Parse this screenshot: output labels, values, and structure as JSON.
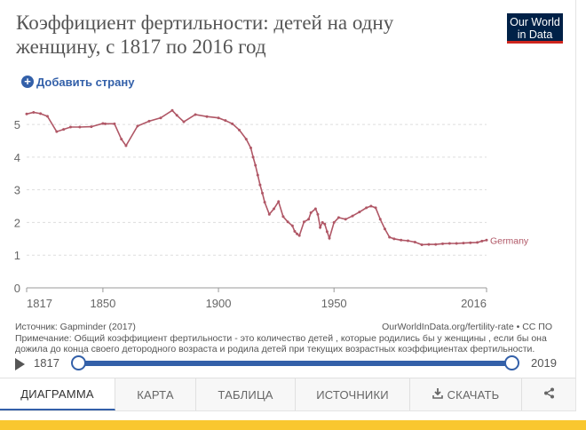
{
  "header": {
    "title": "Коэффициент фертильности: детей на одну женщину, с 1817 по 2016 год",
    "logo_line1": "Our World",
    "logo_line2": "in Data"
  },
  "controls": {
    "add_country": "Добавить страну"
  },
  "chart_data": {
    "type": "line",
    "xlim": [
      1817,
      2016
    ],
    "ylim": [
      0,
      5.6
    ],
    "x_ticks": [
      "1817",
      "1850",
      "1900",
      "1950",
      "2016"
    ],
    "y_ticks": [
      "0",
      "1",
      "2",
      "3",
      "4",
      "5"
    ],
    "grid": true,
    "series": [
      {
        "name": "Germany",
        "color": "#b05766",
        "x": [
          1817,
          1820,
          1823,
          1826,
          1830,
          1833,
          1836,
          1840,
          1845,
          1850,
          1851,
          1855,
          1858,
          1860,
          1865,
          1870,
          1875,
          1880,
          1882,
          1885,
          1890,
          1895,
          1900,
          1903,
          1906,
          1909,
          1912,
          1914,
          1915,
          1916,
          1917,
          1918,
          1919,
          1920,
          1922,
          1924,
          1926,
          1928,
          1930,
          1932,
          1933,
          1934,
          1935,
          1937,
          1939,
          1940,
          1942,
          1943,
          1944,
          1945,
          1946,
          1947,
          1948,
          1950,
          1952,
          1955,
          1958,
          1961,
          1964,
          1966,
          1968,
          1970,
          1972,
          1974,
          1976,
          1979,
          1982,
          1985,
          1988,
          1991,
          1994,
          1997,
          2000,
          2003,
          2006,
          2009,
          2012,
          2014,
          2016
        ],
        "y": [
          5.32,
          5.37,
          5.33,
          5.25,
          4.78,
          4.85,
          4.92,
          4.92,
          4.93,
          5.03,
          5.02,
          5.02,
          4.55,
          4.35,
          4.95,
          5.1,
          5.2,
          5.43,
          5.28,
          5.08,
          5.3,
          5.24,
          5.2,
          5.12,
          5.02,
          4.83,
          4.55,
          4.28,
          4.0,
          3.75,
          3.45,
          3.15,
          2.9,
          2.62,
          2.25,
          2.42,
          2.64,
          2.18,
          2.02,
          1.9,
          1.73,
          1.65,
          1.6,
          2.02,
          2.1,
          2.3,
          2.42,
          2.25,
          1.85,
          2.0,
          1.95,
          1.72,
          1.52,
          2.0,
          2.15,
          2.1,
          2.2,
          2.32,
          2.45,
          2.5,
          2.45,
          2.1,
          1.8,
          1.55,
          1.5,
          1.46,
          1.44,
          1.4,
          1.32,
          1.33,
          1.33,
          1.35,
          1.36,
          1.36,
          1.37,
          1.38,
          1.39,
          1.43,
          1.46
        ]
      }
    ]
  },
  "footer": {
    "source": "Источник: Gapminder (2017)",
    "url": "OurWorldInData.org/fertility-rate • CC ПО",
    "note": "Примечание: Общий коэффициент фертильности - это количество детей , которые родились бы у женщины , если бы она дожила до конца своего детородного возраста и родила детей при текущих возрастных коэффициентах фертильности."
  },
  "timeline": {
    "start": "1817",
    "end": "2019",
    "range_start_fraction": 0.0,
    "range_end_fraction": 1.0
  },
  "tabs": [
    {
      "label": "ДИАГРАММА",
      "active": true
    },
    {
      "label": "КАРТА"
    },
    {
      "label": "ТАБЛИЦА"
    },
    {
      "label": "ИСТОЧНИКИ"
    },
    {
      "label": "СКАЧАТЬ",
      "icon": "download-icon"
    },
    {
      "label": "",
      "icon": "share-icon"
    }
  ],
  "colors": {
    "accent": "#3360a9",
    "series": "#b05766",
    "bottom_bar": "#f9c72f",
    "logo_bg": "#002147",
    "logo_red": "#ce261e"
  }
}
